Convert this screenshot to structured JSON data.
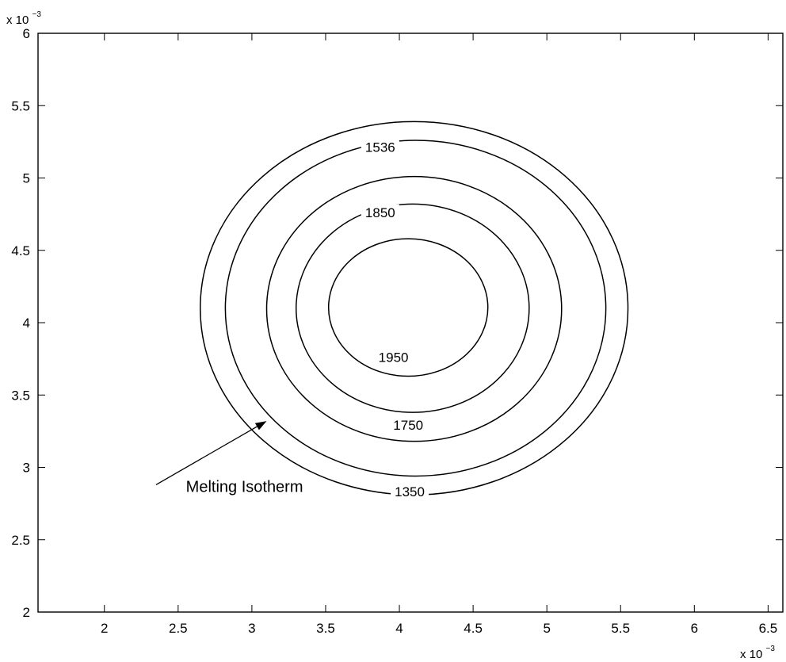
{
  "chart_data": {
    "type": "contour",
    "title": "",
    "xlabel": "",
    "ylabel": "",
    "x_exponent_label": "x 10",
    "x_exponent_power": "−3",
    "y_exponent_label": "x 10",
    "y_exponent_power": "−3",
    "xlim": [
      1.55,
      6.6
    ],
    "ylim": [
      2.0,
      6.0
    ],
    "xticks": [
      2,
      2.5,
      3,
      3.5,
      4,
      4.5,
      5,
      5.5,
      6,
      6.5
    ],
    "xtick_labels": [
      "2",
      "2.5",
      "3",
      "3.5",
      "4",
      "4.5",
      "5",
      "5.5",
      "6",
      "6.5"
    ],
    "yticks": [
      2,
      2.5,
      3,
      3.5,
      4,
      4.5,
      5,
      5.5,
      6
    ],
    "ytick_labels": [
      "2",
      "2.5",
      "3",
      "3.5",
      "4",
      "4.5",
      "5",
      "5.5",
      "6"
    ],
    "grid": false,
    "contours": [
      {
        "label": "1350",
        "cx": 4.05,
        "top": 5.39,
        "bottom": 2.81,
        "left": 2.65,
        "right": 5.55,
        "label_x": 4.07,
        "label_y": 2.8
      },
      {
        "label": "1536",
        "cx": 4.05,
        "top": 5.26,
        "bottom": 2.94,
        "left": 2.82,
        "right": 5.4,
        "label_x": 3.87,
        "label_y": 5.18
      },
      {
        "label": "1750",
        "cx": 4.05,
        "top": 5.01,
        "bottom": 3.18,
        "left": 3.1,
        "right": 5.1,
        "label_x": 4.06,
        "label_y": 3.26
      },
      {
        "label": "1850",
        "cx": 4.05,
        "top": 4.82,
        "bottom": 3.38,
        "left": 3.3,
        "right": 4.88,
        "label_x": 3.87,
        "label_y": 4.73
      },
      {
        "label": "1950",
        "cx": 4.05,
        "top": 4.58,
        "bottom": 3.63,
        "left": 3.52,
        "right": 4.6,
        "label_x": 3.96,
        "label_y": 3.73
      }
    ],
    "annotation": {
      "text": "Melting Isotherm",
      "text_x": 2.95,
      "text_y": 2.83,
      "arrow_from": [
        2.35,
        2.88
      ],
      "arrow_to": [
        3.1,
        3.32
      ]
    }
  }
}
